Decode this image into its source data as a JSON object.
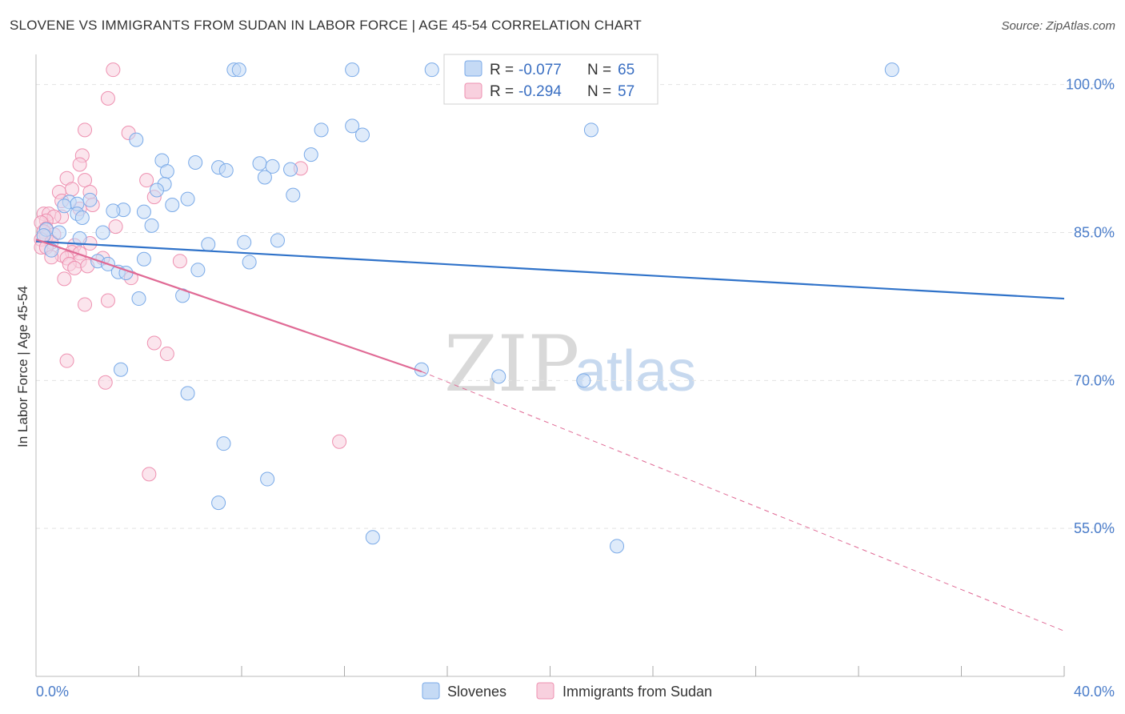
{
  "header": {
    "title": "SLOVENE VS IMMIGRANTS FROM SUDAN IN LABOR FORCE | AGE 45-54 CORRELATION CHART",
    "source": "Source: ZipAtlas.com"
  },
  "watermark": {
    "zip": "ZIP",
    "atlas": "atlas"
  },
  "legend": {
    "r_label": "R =",
    "n_label": "N =",
    "slovenes": {
      "r": "-0.077",
      "n": "65"
    },
    "sudan": {
      "r": "-0.294",
      "n": "57"
    }
  },
  "colors": {
    "slovenes": "#7aaae8",
    "slovenes_fill": "#c5daf5",
    "slovenes_line": "#2f72c9",
    "sudan": "#ee90b0",
    "sudan_fill": "#f8d0de",
    "sudan_line": "#e06a95"
  },
  "chart_data": {
    "type": "scatter",
    "title": "SLOVENE VS IMMIGRANTS FROM SUDAN IN LABOR FORCE | AGE 45-54 CORRELATION CHART",
    "xlabel": "",
    "ylabel": "In Labor Force | Age 45-54",
    "xlim": [
      0,
      40
    ],
    "ylim": [
      40,
      102
    ],
    "x_tick_labels": [
      "0.0%",
      "40.0%"
    ],
    "y_ticks": [
      55,
      70,
      85,
      100
    ],
    "y_tick_labels": [
      "55.0%",
      "70.0%",
      "85.0%",
      "100.0%"
    ],
    "series": [
      {
        "name": "Slovenes",
        "trend": {
          "x": [
            0,
            40
          ],
          "y": [
            84.1,
            78.3
          ]
        },
        "points": [
          {
            "x": 7.7,
            "y": 101.5
          },
          {
            "x": 7.9,
            "y": 101.5
          },
          {
            "x": 12.3,
            "y": 101.5
          },
          {
            "x": 15.4,
            "y": 101.5
          },
          {
            "x": 33.3,
            "y": 101.5
          },
          {
            "x": 11.1,
            "y": 95.4
          },
          {
            "x": 12.3,
            "y": 95.8
          },
          {
            "x": 12.7,
            "y": 94.9
          },
          {
            "x": 21.6,
            "y": 95.4
          },
          {
            "x": 3.9,
            "y": 94.4
          },
          {
            "x": 10.7,
            "y": 92.9
          },
          {
            "x": 4.9,
            "y": 92.3
          },
          {
            "x": 6.2,
            "y": 92.1
          },
          {
            "x": 8.7,
            "y": 92.0
          },
          {
            "x": 9.2,
            "y": 91.7
          },
          {
            "x": 7.1,
            "y": 91.6
          },
          {
            "x": 7.4,
            "y": 91.3
          },
          {
            "x": 5.1,
            "y": 91.2
          },
          {
            "x": 8.9,
            "y": 90.6
          },
          {
            "x": 9.9,
            "y": 91.4
          },
          {
            "x": 5.0,
            "y": 89.9
          },
          {
            "x": 4.7,
            "y": 89.3
          },
          {
            "x": 10.0,
            "y": 88.8
          },
          {
            "x": 5.9,
            "y": 88.4
          },
          {
            "x": 1.3,
            "y": 88.1
          },
          {
            "x": 2.1,
            "y": 88.3
          },
          {
            "x": 1.6,
            "y": 87.9
          },
          {
            "x": 1.1,
            "y": 87.7
          },
          {
            "x": 3.4,
            "y": 87.3
          },
          {
            "x": 3.0,
            "y": 87.2
          },
          {
            "x": 4.2,
            "y": 87.1
          },
          {
            "x": 5.3,
            "y": 87.8
          },
          {
            "x": 1.6,
            "y": 86.9
          },
          {
            "x": 1.8,
            "y": 86.5
          },
          {
            "x": 4.5,
            "y": 85.7
          },
          {
            "x": 2.6,
            "y": 85.0
          },
          {
            "x": 0.9,
            "y": 85.0
          },
          {
            "x": 0.4,
            "y": 85.3
          },
          {
            "x": 0.3,
            "y": 84.7
          },
          {
            "x": 1.7,
            "y": 84.4
          },
          {
            "x": 6.7,
            "y": 83.8
          },
          {
            "x": 8.1,
            "y": 84.0
          },
          {
            "x": 9.4,
            "y": 84.2
          },
          {
            "x": 0.6,
            "y": 83.2
          },
          {
            "x": 2.4,
            "y": 82.1
          },
          {
            "x": 4.2,
            "y": 82.3
          },
          {
            "x": 8.3,
            "y": 82.0
          },
          {
            "x": 2.8,
            "y": 81.8
          },
          {
            "x": 3.2,
            "y": 81.0
          },
          {
            "x": 3.5,
            "y": 80.9
          },
          {
            "x": 6.3,
            "y": 81.2
          },
          {
            "x": 5.7,
            "y": 78.6
          },
          {
            "x": 4.0,
            "y": 78.3
          },
          {
            "x": 3.3,
            "y": 71.1
          },
          {
            "x": 15.0,
            "y": 71.1
          },
          {
            "x": 18.0,
            "y": 70.4
          },
          {
            "x": 21.3,
            "y": 70.0
          },
          {
            "x": 5.9,
            "y": 68.7
          },
          {
            "x": 7.3,
            "y": 63.6
          },
          {
            "x": 9.0,
            "y": 60.0
          },
          {
            "x": 7.1,
            "y": 57.6
          },
          {
            "x": 13.1,
            "y": 54.1
          },
          {
            "x": 22.6,
            "y": 53.2
          }
        ]
      },
      {
        "name": "Immigrants from Sudan",
        "trend": {
          "x": [
            0,
            15
          ],
          "y": [
            84.3,
            70.9
          ],
          "dashed_extension": {
            "x": [
              15,
              40
            ],
            "y": [
              70.9,
              44.6
            ]
          }
        },
        "points": [
          {
            "x": 3.0,
            "y": 101.5
          },
          {
            "x": 2.8,
            "y": 98.6
          },
          {
            "x": 1.9,
            "y": 95.4
          },
          {
            "x": 3.6,
            "y": 95.1
          },
          {
            "x": 1.8,
            "y": 92.8
          },
          {
            "x": 1.7,
            "y": 91.9
          },
          {
            "x": 10.3,
            "y": 91.5
          },
          {
            "x": 1.2,
            "y": 90.5
          },
          {
            "x": 1.9,
            "y": 90.3
          },
          {
            "x": 4.3,
            "y": 90.3
          },
          {
            "x": 1.4,
            "y": 89.4
          },
          {
            "x": 0.9,
            "y": 89.1
          },
          {
            "x": 2.1,
            "y": 89.1
          },
          {
            "x": 4.6,
            "y": 88.6
          },
          {
            "x": 1.0,
            "y": 88.2
          },
          {
            "x": 2.2,
            "y": 87.8
          },
          {
            "x": 1.7,
            "y": 87.4
          },
          {
            "x": 0.3,
            "y": 86.9
          },
          {
            "x": 0.5,
            "y": 86.9
          },
          {
            "x": 1.0,
            "y": 86.6
          },
          {
            "x": 0.7,
            "y": 86.6
          },
          {
            "x": 0.4,
            "y": 86.2
          },
          {
            "x": 0.2,
            "y": 86.0
          },
          {
            "x": 0.4,
            "y": 85.4
          },
          {
            "x": 3.1,
            "y": 85.6
          },
          {
            "x": 0.3,
            "y": 85.1
          },
          {
            "x": 0.7,
            "y": 84.8
          },
          {
            "x": 0.4,
            "y": 84.6
          },
          {
            "x": 0.2,
            "y": 84.3
          },
          {
            "x": 0.6,
            "y": 84.0
          },
          {
            "x": 1.5,
            "y": 83.7
          },
          {
            "x": 2.1,
            "y": 83.9
          },
          {
            "x": 0.2,
            "y": 83.5
          },
          {
            "x": 0.4,
            "y": 83.5
          },
          {
            "x": 1.4,
            "y": 83.0
          },
          {
            "x": 1.7,
            "y": 82.9
          },
          {
            "x": 1.0,
            "y": 82.7
          },
          {
            "x": 0.6,
            "y": 82.5
          },
          {
            "x": 1.2,
            "y": 82.4
          },
          {
            "x": 2.6,
            "y": 82.4
          },
          {
            "x": 1.7,
            "y": 82.1
          },
          {
            "x": 1.3,
            "y": 81.8
          },
          {
            "x": 1.5,
            "y": 81.4
          },
          {
            "x": 2.0,
            "y": 81.6
          },
          {
            "x": 5.6,
            "y": 82.1
          },
          {
            "x": 1.1,
            "y": 80.3
          },
          {
            "x": 3.7,
            "y": 80.4
          },
          {
            "x": 1.9,
            "y": 77.7
          },
          {
            "x": 2.8,
            "y": 78.1
          },
          {
            "x": 4.6,
            "y": 73.8
          },
          {
            "x": 5.1,
            "y": 72.7
          },
          {
            "x": 1.2,
            "y": 72.0
          },
          {
            "x": 2.7,
            "y": 69.8
          },
          {
            "x": 11.8,
            "y": 63.8
          },
          {
            "x": 4.4,
            "y": 60.5
          }
        ]
      }
    ],
    "legend_entries": [
      "Slovenes",
      "Immigrants from Sudan"
    ]
  }
}
